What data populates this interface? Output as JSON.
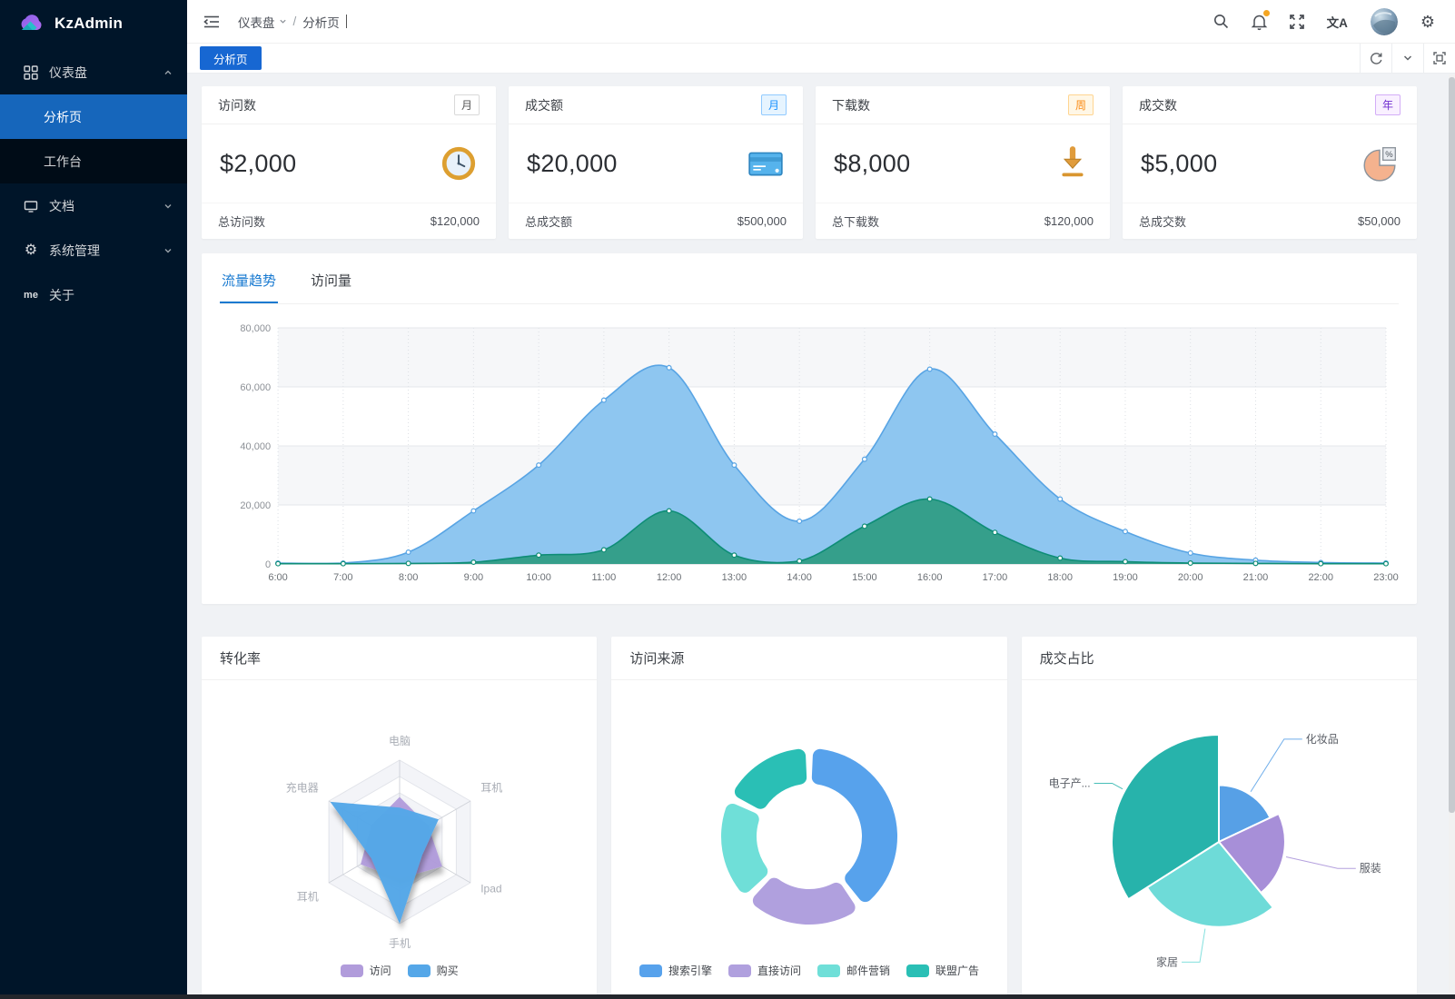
{
  "app": {
    "title": "KzAdmin"
  },
  "icons": {
    "gear_glyph": "⚙",
    "translate_glyph": "文A",
    "me_glyph": "me"
  },
  "sidebar": {
    "logo_text": "KzAdmin",
    "items": [
      {
        "label": "仪表盘",
        "icon": "dashboard-grid",
        "expanded": true,
        "children": [
          {
            "label": "分析页",
            "active": true
          },
          {
            "label": "工作台",
            "active": false
          }
        ]
      },
      {
        "label": "文档",
        "icon": "monitor"
      },
      {
        "label": "系统管理",
        "icon": "gear"
      },
      {
        "label": "关于",
        "icon": "me"
      }
    ]
  },
  "header": {
    "breadcrumb": {
      "items": [
        "仪表盘",
        "分析页"
      ],
      "separator": "/"
    }
  },
  "tabbar": {
    "active_tab": "分析页"
  },
  "stat_cards": [
    {
      "title": "访问数",
      "badge": "月",
      "badge_color": "default",
      "value": "$2,000",
      "icon": "clock",
      "footer_label": "总访问数",
      "footer_value": "$120,000"
    },
    {
      "title": "成交额",
      "badge": "月",
      "badge_color": "blue",
      "value": "$20,000",
      "icon": "credit-card",
      "footer_label": "总成交额",
      "footer_value": "$500,000"
    },
    {
      "title": "下载数",
      "badge": "周",
      "badge_color": "orange",
      "value": "$8,000",
      "icon": "download",
      "footer_label": "总下载数",
      "footer_value": "$120,000"
    },
    {
      "title": "成交数",
      "badge": "年",
      "badge_color": "purple",
      "value": "$5,000",
      "icon": "pie-percent",
      "footer_label": "总成交数",
      "footer_value": "$50,000"
    }
  ],
  "trend_card": {
    "tabs": [
      {
        "label": "流量趋势",
        "active": true
      },
      {
        "label": "访问量",
        "active": false
      }
    ]
  },
  "bottom_cards": [
    {
      "title": "转化率"
    },
    {
      "title": "访问来源"
    },
    {
      "title": "成交占比"
    }
  ],
  "chart_data": [
    {
      "id": "traffic_trend",
      "type": "area",
      "title": "流量趋势",
      "x": [
        "6:00",
        "7:00",
        "8:00",
        "9:00",
        "10:00",
        "11:00",
        "12:00",
        "13:00",
        "14:00",
        "15:00",
        "16:00",
        "17:00",
        "18:00",
        "19:00",
        "20:00",
        "21:00",
        "22:00",
        "23:00"
      ],
      "series": [
        {
          "name": "series_1",
          "line_color": "#58a4e4",
          "fill_color": "#8ec6f0",
          "fill_opacity": 1,
          "values": [
            300,
            300,
            4000,
            18000,
            33500,
            55500,
            66500,
            33500,
            14500,
            35500,
            66000,
            44000,
            22000,
            11000,
            3700,
            1300,
            500,
            300
          ]
        },
        {
          "name": "series_2",
          "line_color": "#0e8d76",
          "fill_color": "#2e9b82",
          "fill_opacity": 0.92,
          "values": [
            100,
            100,
            200,
            600,
            3000,
            4800,
            18000,
            3000,
            1000,
            12800,
            22000,
            10700,
            2000,
            800,
            300,
            200,
            100,
            100
          ]
        }
      ],
      "ylim": [
        0,
        80000
      ],
      "yticks": [
        0,
        20000,
        40000,
        60000,
        80000
      ],
      "ytick_labels": [
        "0",
        "20,000",
        "40,000",
        "60,000",
        "80,000"
      ],
      "grid": "horizontal-bands",
      "legend_position": "none"
    },
    {
      "id": "conversion_radar",
      "type": "radar",
      "title": "转化率",
      "indicators": [
        "电脑",
        "耳机",
        "Ipad",
        "手机",
        "耳机",
        "充电器"
      ],
      "max": 100,
      "series": [
        {
          "name": "访问",
          "color": "#b19cdb",
          "values": [
            55,
            40,
            60,
            45,
            55,
            40
          ]
        },
        {
          "name": "购买",
          "color": "#55a7e8",
          "values": [
            42,
            55,
            32,
            100,
            40,
            98
          ]
        }
      ],
      "legend_position": "bottom"
    },
    {
      "id": "visit_source_donut",
      "type": "donut",
      "title": "访问来源",
      "slices": [
        {
          "label": "搜索引擎",
          "value": 40,
          "color": "#57a2ec"
        },
        {
          "label": "直接访问",
          "value": 22,
          "color": "#b0a0de"
        },
        {
          "label": "邮件营销",
          "value": 19,
          "color": "#6fdfd8"
        },
        {
          "label": "联盟广告",
          "value": 17,
          "color": "#2abfb5"
        }
      ],
      "legend_position": "bottom"
    },
    {
      "id": "deal_share_pie",
      "type": "rose_pie",
      "title": "成交占比",
      "slices": [
        {
          "label": "化妆品",
          "value": 18,
          "color": "#57a0e6"
        },
        {
          "label": "服装",
          "value": 21,
          "color": "#a78fd8"
        },
        {
          "label": "家居",
          "value": 27,
          "color": "#6edbd8"
        },
        {
          "label": "电子产...",
          "value": 34,
          "color": "#27b3ab"
        }
      ],
      "legend_position": "labels"
    }
  ]
}
